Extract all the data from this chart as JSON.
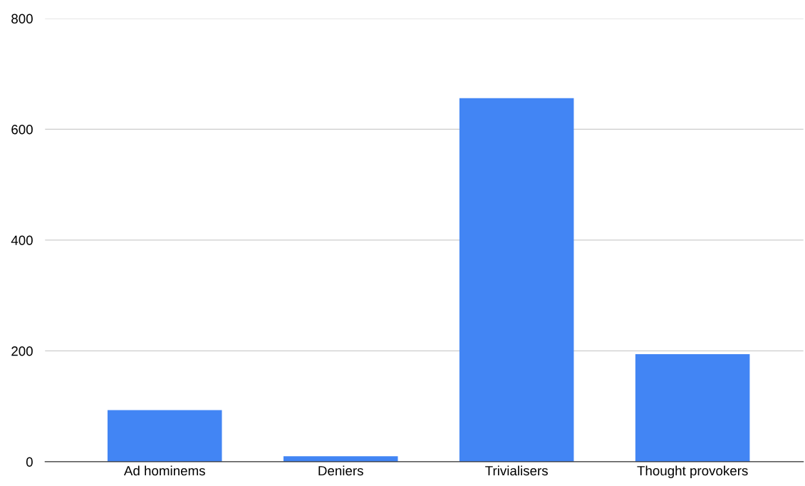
{
  "chart_data": {
    "type": "bar",
    "categories": [
      "Ad hominems",
      "Deniers",
      "Trivialisers",
      "Thought provokers"
    ],
    "values": [
      93,
      10,
      656,
      194
    ],
    "color": "#4285f4",
    "ylim": [
      0,
      800
    ],
    "yticks": [
      0,
      200,
      400,
      600,
      800
    ],
    "grid": "y"
  }
}
